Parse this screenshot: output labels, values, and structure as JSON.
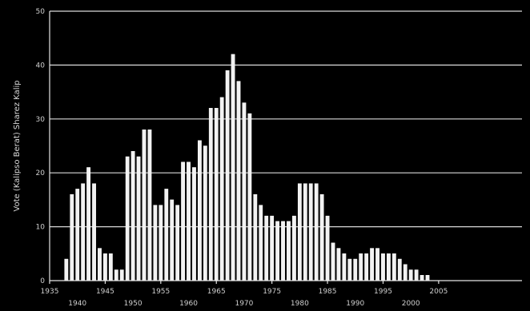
{
  "chart_data": {
    "type": "bar",
    "title": "",
    "ylabel": "Vote (Kalipso Berat) Sharez Kalip",
    "xlabel": "",
    "ylim": [
      0,
      50
    ],
    "xlim": [
      1935,
      2020
    ],
    "y_ticks": [
      "0",
      "10",
      "20",
      "30",
      "40",
      "50"
    ],
    "x_ticks_upper": [
      "1935",
      "1945",
      "1955",
      "1965",
      "1975",
      "1985",
      "1995",
      "2005"
    ],
    "x_ticks_lower": [
      "1940",
      "1950",
      "1960",
      "1970",
      "1980",
      "1990",
      "2000"
    ],
    "grid": true,
    "categories": [
      1938,
      1939,
      1940,
      1941,
      1942,
      1943,
      1944,
      1945,
      1946,
      1947,
      1948,
      1949,
      1950,
      1951,
      1952,
      1953,
      1954,
      1955,
      1956,
      1957,
      1958,
      1959,
      1960,
      1961,
      1962,
      1963,
      1964,
      1965,
      1966,
      1967,
      1968,
      1969,
      1970,
      1971,
      1972,
      1973,
      1974,
      1975,
      1976,
      1977,
      1978,
      1979,
      1980,
      1981,
      1982,
      1983,
      1984,
      1985,
      1986,
      1987,
      1988,
      1989,
      1990,
      1991,
      1992,
      1993,
      1994,
      1995,
      1996,
      1997,
      1998,
      1999,
      2000,
      2001,
      2002,
      2003
    ],
    "values": [
      4,
      16,
      17,
      18,
      21,
      18,
      6,
      5,
      5,
      2,
      2,
      23,
      24,
      23,
      28,
      28,
      14,
      14,
      17,
      15,
      14,
      22,
      22,
      21,
      26,
      25,
      32,
      32,
      34,
      39,
      42,
      37,
      33,
      31,
      16,
      14,
      12,
      12,
      11,
      11,
      11,
      12,
      18,
      18,
      18,
      18,
      16,
      12,
      7,
      6,
      5,
      4,
      4,
      5,
      5,
      6,
      6,
      5,
      5,
      5,
      4,
      3,
      2,
      2,
      1,
      1
    ]
  }
}
